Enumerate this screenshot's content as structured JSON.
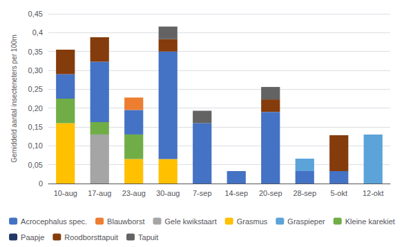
{
  "chart_data": {
    "type": "bar",
    "stacked": true,
    "grid": true,
    "legend": "bottom",
    "ylabel": "Gemiddeld aantal insecteneters per 100m",
    "categories": [
      "10-aug",
      "17-aug",
      "23-aug",
      "30-aug",
      "7-sep",
      "14-sep",
      "20-sep",
      "28-sep",
      "5-okt",
      "12-okt"
    ],
    "series": [
      {
        "name": "Grasmus",
        "color": "#FFC000",
        "values": [
          0.16,
          0.0,
          0.065,
          0.065,
          0.0,
          0.0,
          0.0,
          0.0,
          0.0,
          0.0
        ]
      },
      {
        "name": "Gele kwikstaart",
        "color": "#A5A5A5",
        "values": [
          0.0,
          0.13,
          0.0,
          0.0,
          0.0,
          0.0,
          0.0,
          0.0,
          0.0,
          0.0
        ]
      },
      {
        "name": "Kleine karekiet",
        "color": "#70AD47",
        "values": [
          0.065,
          0.033,
          0.065,
          0.0,
          0.0,
          0.0,
          0.0,
          0.0,
          0.0,
          0.0
        ]
      },
      {
        "name": "Acrocephalus spec.",
        "color": "#4472C4",
        "values": [
          0.065,
          0.16,
          0.065,
          0.285,
          0.16,
          0.033,
          0.19,
          0.033,
          0.033,
          0.0
        ]
      },
      {
        "name": "Blauwborst",
        "color": "#ED7D31",
        "values": [
          0.0,
          0.0,
          0.033,
          0.0,
          0.0,
          0.0,
          0.0,
          0.0,
          0.0,
          0.0
        ]
      },
      {
        "name": "Graspieper",
        "color": "#5BA3D9",
        "values": [
          0.0,
          0.0,
          0.0,
          0.0,
          0.0,
          0.0,
          0.0,
          0.033,
          0.0,
          0.13
        ]
      },
      {
        "name": "Paapje",
        "color": "#1F3864",
        "values": [
          0.0,
          0.0,
          0.0,
          0.0,
          0.0,
          0.0,
          0.0,
          0.0,
          0.0,
          0.0
        ]
      },
      {
        "name": "Roodborsttapuit",
        "color": "#843C0C",
        "values": [
          0.065,
          0.065,
          0.0,
          0.033,
          0.0,
          0.0,
          0.033,
          0.0,
          0.095,
          0.0
        ]
      },
      {
        "name": "Tapuit",
        "color": "#636363",
        "values": [
          0.0,
          0.0,
          0.0,
          0.033,
          0.033,
          0.0,
          0.033,
          0.0,
          0.0,
          0.0
        ]
      }
    ],
    "ylim": [
      0,
      0.45
    ],
    "yticks": [
      0,
      {
        "value": 0.05,
        "label": "0,05"
      },
      {
        "value": 0.1,
        "label": "0,10"
      },
      {
        "value": 0.15,
        "label": "0,15"
      },
      {
        "value": 0.2,
        "label": "0,20"
      },
      {
        "value": 0.25,
        "label": "0,25"
      },
      {
        "value": 0.3,
        "label": "0,30"
      },
      {
        "value": 0.35,
        "label": "0,35"
      },
      {
        "value": 0.4,
        "label": "0,4"
      },
      {
        "value": 0.45,
        "label": "0,45"
      }
    ]
  }
}
